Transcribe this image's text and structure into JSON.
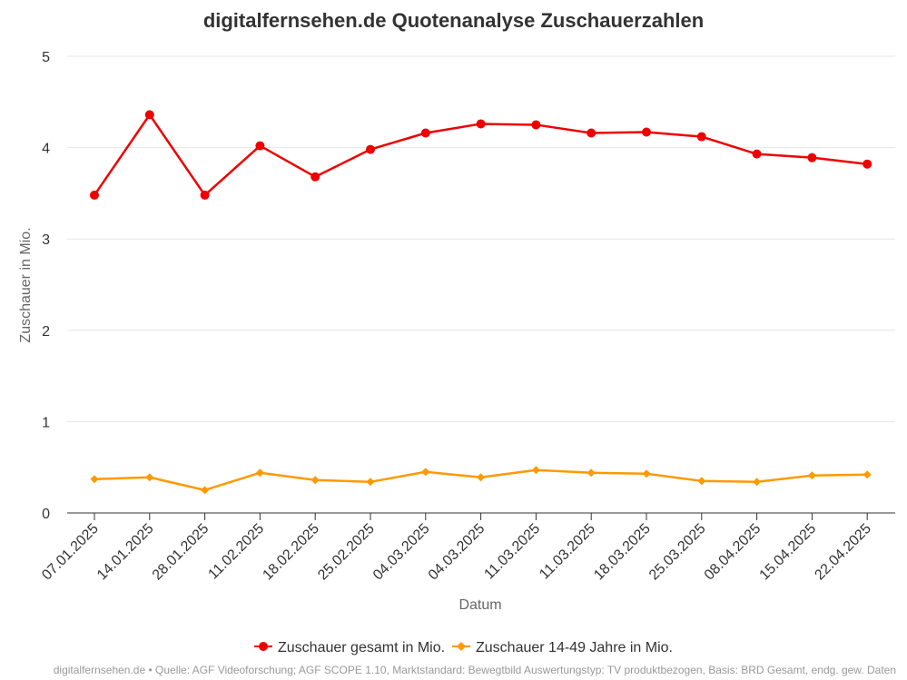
{
  "chart_data": {
    "type": "line",
    "title": "digitalfernsehen.de Quotenanalyse Zuschauerzahlen",
    "xlabel": "Datum",
    "ylabel": "Zuschauer in Mio.",
    "ylim": [
      0,
      5
    ],
    "yticks": [
      "0",
      "1",
      "2",
      "3",
      "4",
      "5"
    ],
    "grid": true,
    "legend_position": "bottom",
    "categories": [
      "07.01.2025",
      "14.01.2025",
      "28.01.2025",
      "11.02.2025",
      "18.02.2025",
      "25.02.2025",
      "04.03.2025",
      "04.03.2025",
      "11.03.2025",
      "11.03.2025",
      "18.03.2025",
      "25.03.2025",
      "08.04.2025",
      "15.04.2025",
      "22.04.2025"
    ],
    "series": [
      {
        "name": "Zuschauer gesamt in Mio.",
        "color": "#ee0000",
        "marker": "circle",
        "values": [
          3.48,
          4.36,
          3.48,
          4.02,
          3.68,
          3.98,
          4.16,
          4.26,
          4.25,
          4.16,
          4.17,
          4.12,
          3.93,
          3.89,
          3.82
        ]
      },
      {
        "name": "Zuschauer 14-49 Jahre in Mio.",
        "color": "#ff9900",
        "marker": "diamond",
        "values": [
          0.37,
          0.39,
          0.25,
          0.44,
          0.36,
          0.34,
          0.45,
          0.39,
          0.47,
          0.44,
          0.43,
          0.35,
          0.34,
          0.41,
          0.42
        ]
      }
    ]
  },
  "footer": "digitalfernsehen.de • Quelle: AGF Videoforschung; AGF SCOPE 1.10, Marktstandard: Bewegtbild Auswertungstyp: TV produktbezogen, Basis: BRD Gesamt, endg. gew. Daten"
}
